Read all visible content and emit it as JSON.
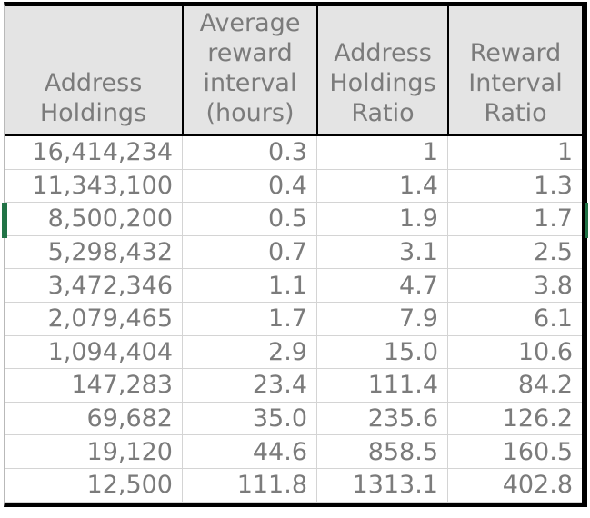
{
  "sheet": {
    "columns": [
      {
        "name": "address-holdings",
        "label": "Address\nHoldings"
      },
      {
        "name": "average-reward-interval",
        "label": "Average\nreward\ninterval\n(hours)"
      },
      {
        "name": "address-holdings-ratio",
        "label": "Address\nHoldings\nRatio"
      },
      {
        "name": "reward-interval-ratio",
        "label": "Reward\nInterval\nRatio"
      }
    ],
    "rows": [
      [
        "16,414,234",
        "0.3",
        "1",
        "1"
      ],
      [
        "11,343,100",
        "0.4",
        "1.4",
        "1.3"
      ],
      [
        "8,500,200",
        "0.5",
        "1.9",
        "1.7"
      ],
      [
        "5,298,432",
        "0.7",
        "3.1",
        "2.5"
      ],
      [
        "3,472,346",
        "1.1",
        "4.7",
        "3.8"
      ],
      [
        "2,079,465",
        "1.7",
        "7.9",
        "6.1"
      ],
      [
        "1,094,404",
        "2.9",
        "15.0",
        "10.6"
      ],
      [
        "147,283",
        "23.4",
        "111.4",
        "84.2"
      ],
      [
        "69,682",
        "35.0",
        "235.6",
        "126.2"
      ],
      [
        "19,120",
        "44.6",
        "858.5",
        "160.5"
      ],
      [
        "12,500",
        "111.8",
        "1313.1",
        "402.8"
      ]
    ],
    "selected_row_number": 3
  },
  "colors": {
    "header_bg": "#e4e4e4",
    "text_gray": "#7b7b7b",
    "gridline": "#d4d4d4",
    "outer_border": "#000000",
    "left_edge": "#b9b9b9",
    "selection_green": "#217346",
    "page_bg": "#ffffff"
  }
}
